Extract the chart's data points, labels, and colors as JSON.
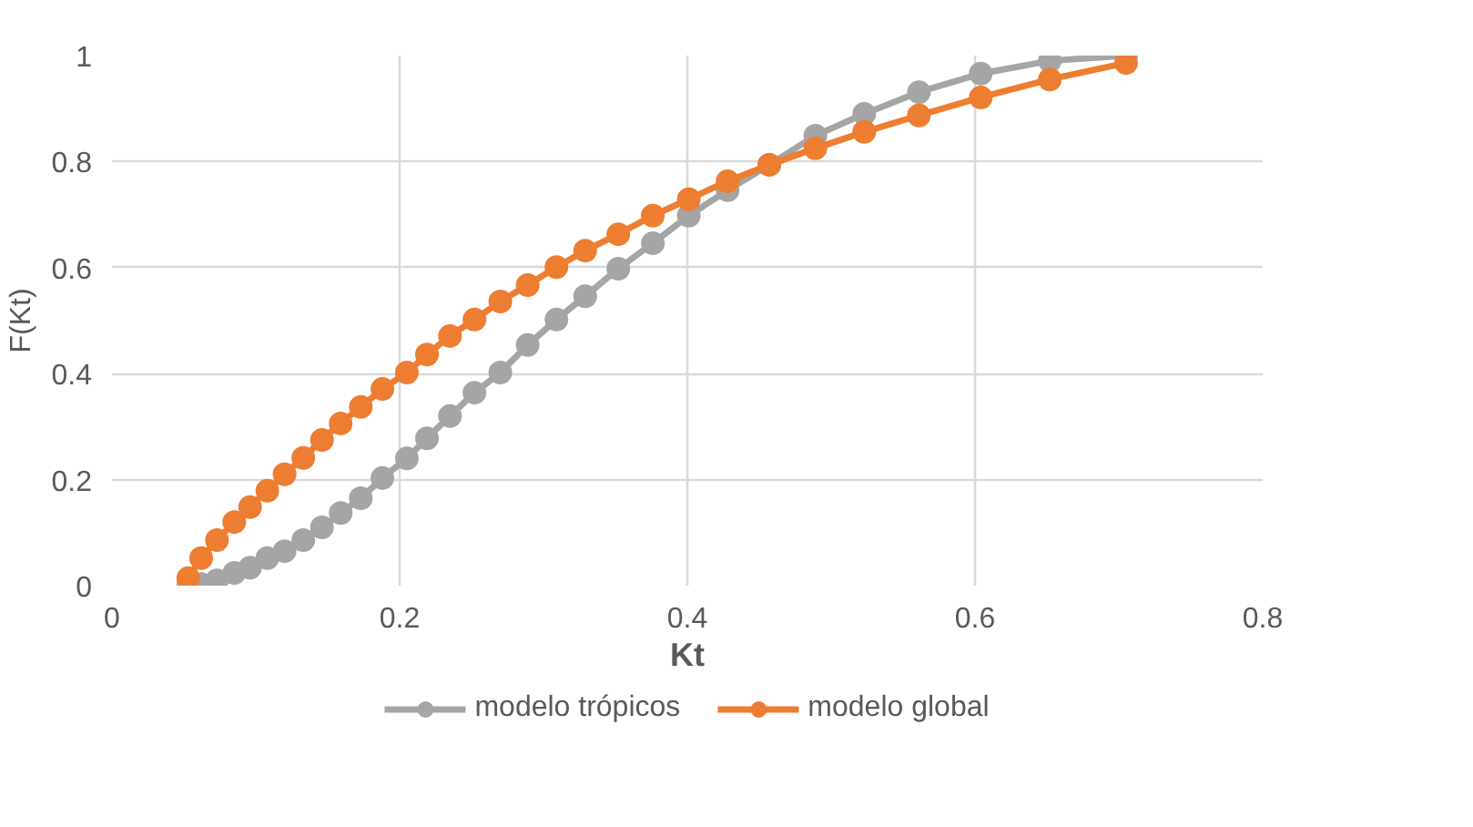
{
  "chart_data": {
    "type": "line",
    "xlabel": "Kt",
    "ylabel": "F(Kt)",
    "x": [
      0.053,
      0.062,
      0.073,
      0.085,
      0.096,
      0.108,
      0.12,
      0.133,
      0.146,
      0.159,
      0.173,
      0.188,
      0.205,
      0.219,
      0.235,
      0.252,
      0.27,
      0.289,
      0.309,
      0.329,
      0.352,
      0.376,
      0.401,
      0.428,
      0.457,
      0.489,
      0.523,
      0.561,
      0.604,
      0.652,
      0.705
    ],
    "series": [
      {
        "name": "modelo trópicos",
        "color": "#a5a5a5",
        "values": [
          0,
          0.003,
          0.01,
          0.024,
          0.034,
          0.052,
          0.065,
          0.086,
          0.11,
          0.137,
          0.165,
          0.203,
          0.24,
          0.278,
          0.32,
          0.364,
          0.402,
          0.454,
          0.502,
          0.546,
          0.598,
          0.646,
          0.698,
          0.746,
          0.794,
          0.849,
          0.89,
          0.931,
          0.966,
          0.99,
          1.0
        ]
      },
      {
        "name": "modelo global",
        "color": "#ed7d31",
        "values": [
          0.014,
          0.052,
          0.086,
          0.12,
          0.148,
          0.179,
          0.21,
          0.241,
          0.275,
          0.306,
          0.337,
          0.371,
          0.402,
          0.436,
          0.471,
          0.502,
          0.536,
          0.567,
          0.601,
          0.632,
          0.663,
          0.698,
          0.729,
          0.763,
          0.794,
          0.825,
          0.856,
          0.887,
          0.921,
          0.955,
          0.986
        ]
      }
    ],
    "xlim": [
      0,
      0.8
    ],
    "xticks": [
      0,
      0.2,
      0.4,
      0.6,
      0.8
    ],
    "ylim": [
      0,
      1
    ],
    "yticks": [
      0,
      0.2,
      0.4,
      0.6,
      0.8,
      1
    ],
    "grid": true,
    "legend": "bottom",
    "marker": "circle",
    "line_style": "solid"
  }
}
